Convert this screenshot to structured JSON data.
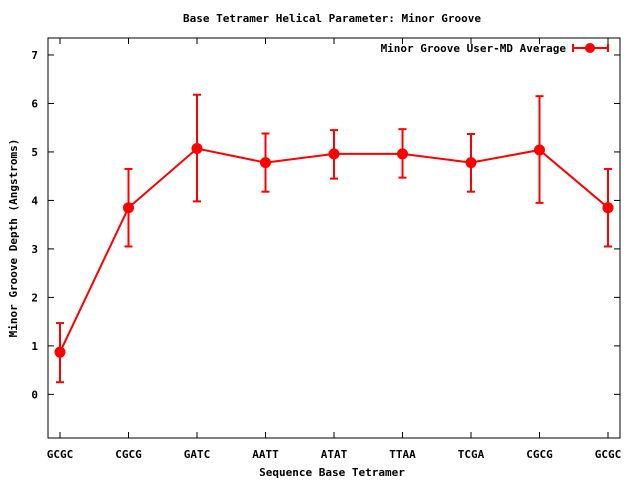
{
  "chart_data": {
    "type": "line",
    "title": "Base Tetramer Helical Parameter: Minor Groove",
    "xlabel": "Sequence Base Tetramer",
    "ylabel": "Minor Groove Depth (Angstroms)",
    "categories": [
      "GCGC",
      "CGCG",
      "GATC",
      "AATT",
      "ATAT",
      "TTAA",
      "TCGA",
      "CGCG",
      "GCGC"
    ],
    "ylim": [
      -0.9,
      7.35
    ],
    "yticks": [
      0,
      1,
      2,
      3,
      4,
      5,
      6,
      7
    ],
    "legend_position": "top-right",
    "grid": false,
    "series": [
      {
        "name": "Minor Groove User-MD Average",
        "color": "#ff0000",
        "marker": "circle",
        "values": [
          0.87,
          3.85,
          5.07,
          4.78,
          4.96,
          4.96,
          4.78,
          5.04,
          3.85
        ],
        "error_low": [
          0.25,
          3.05,
          3.98,
          4.18,
          4.45,
          4.47,
          4.18,
          3.95,
          3.05
        ],
        "error_high": [
          1.47,
          4.65,
          6.18,
          5.38,
          5.45,
          5.47,
          5.37,
          6.15,
          4.65
        ]
      }
    ]
  }
}
